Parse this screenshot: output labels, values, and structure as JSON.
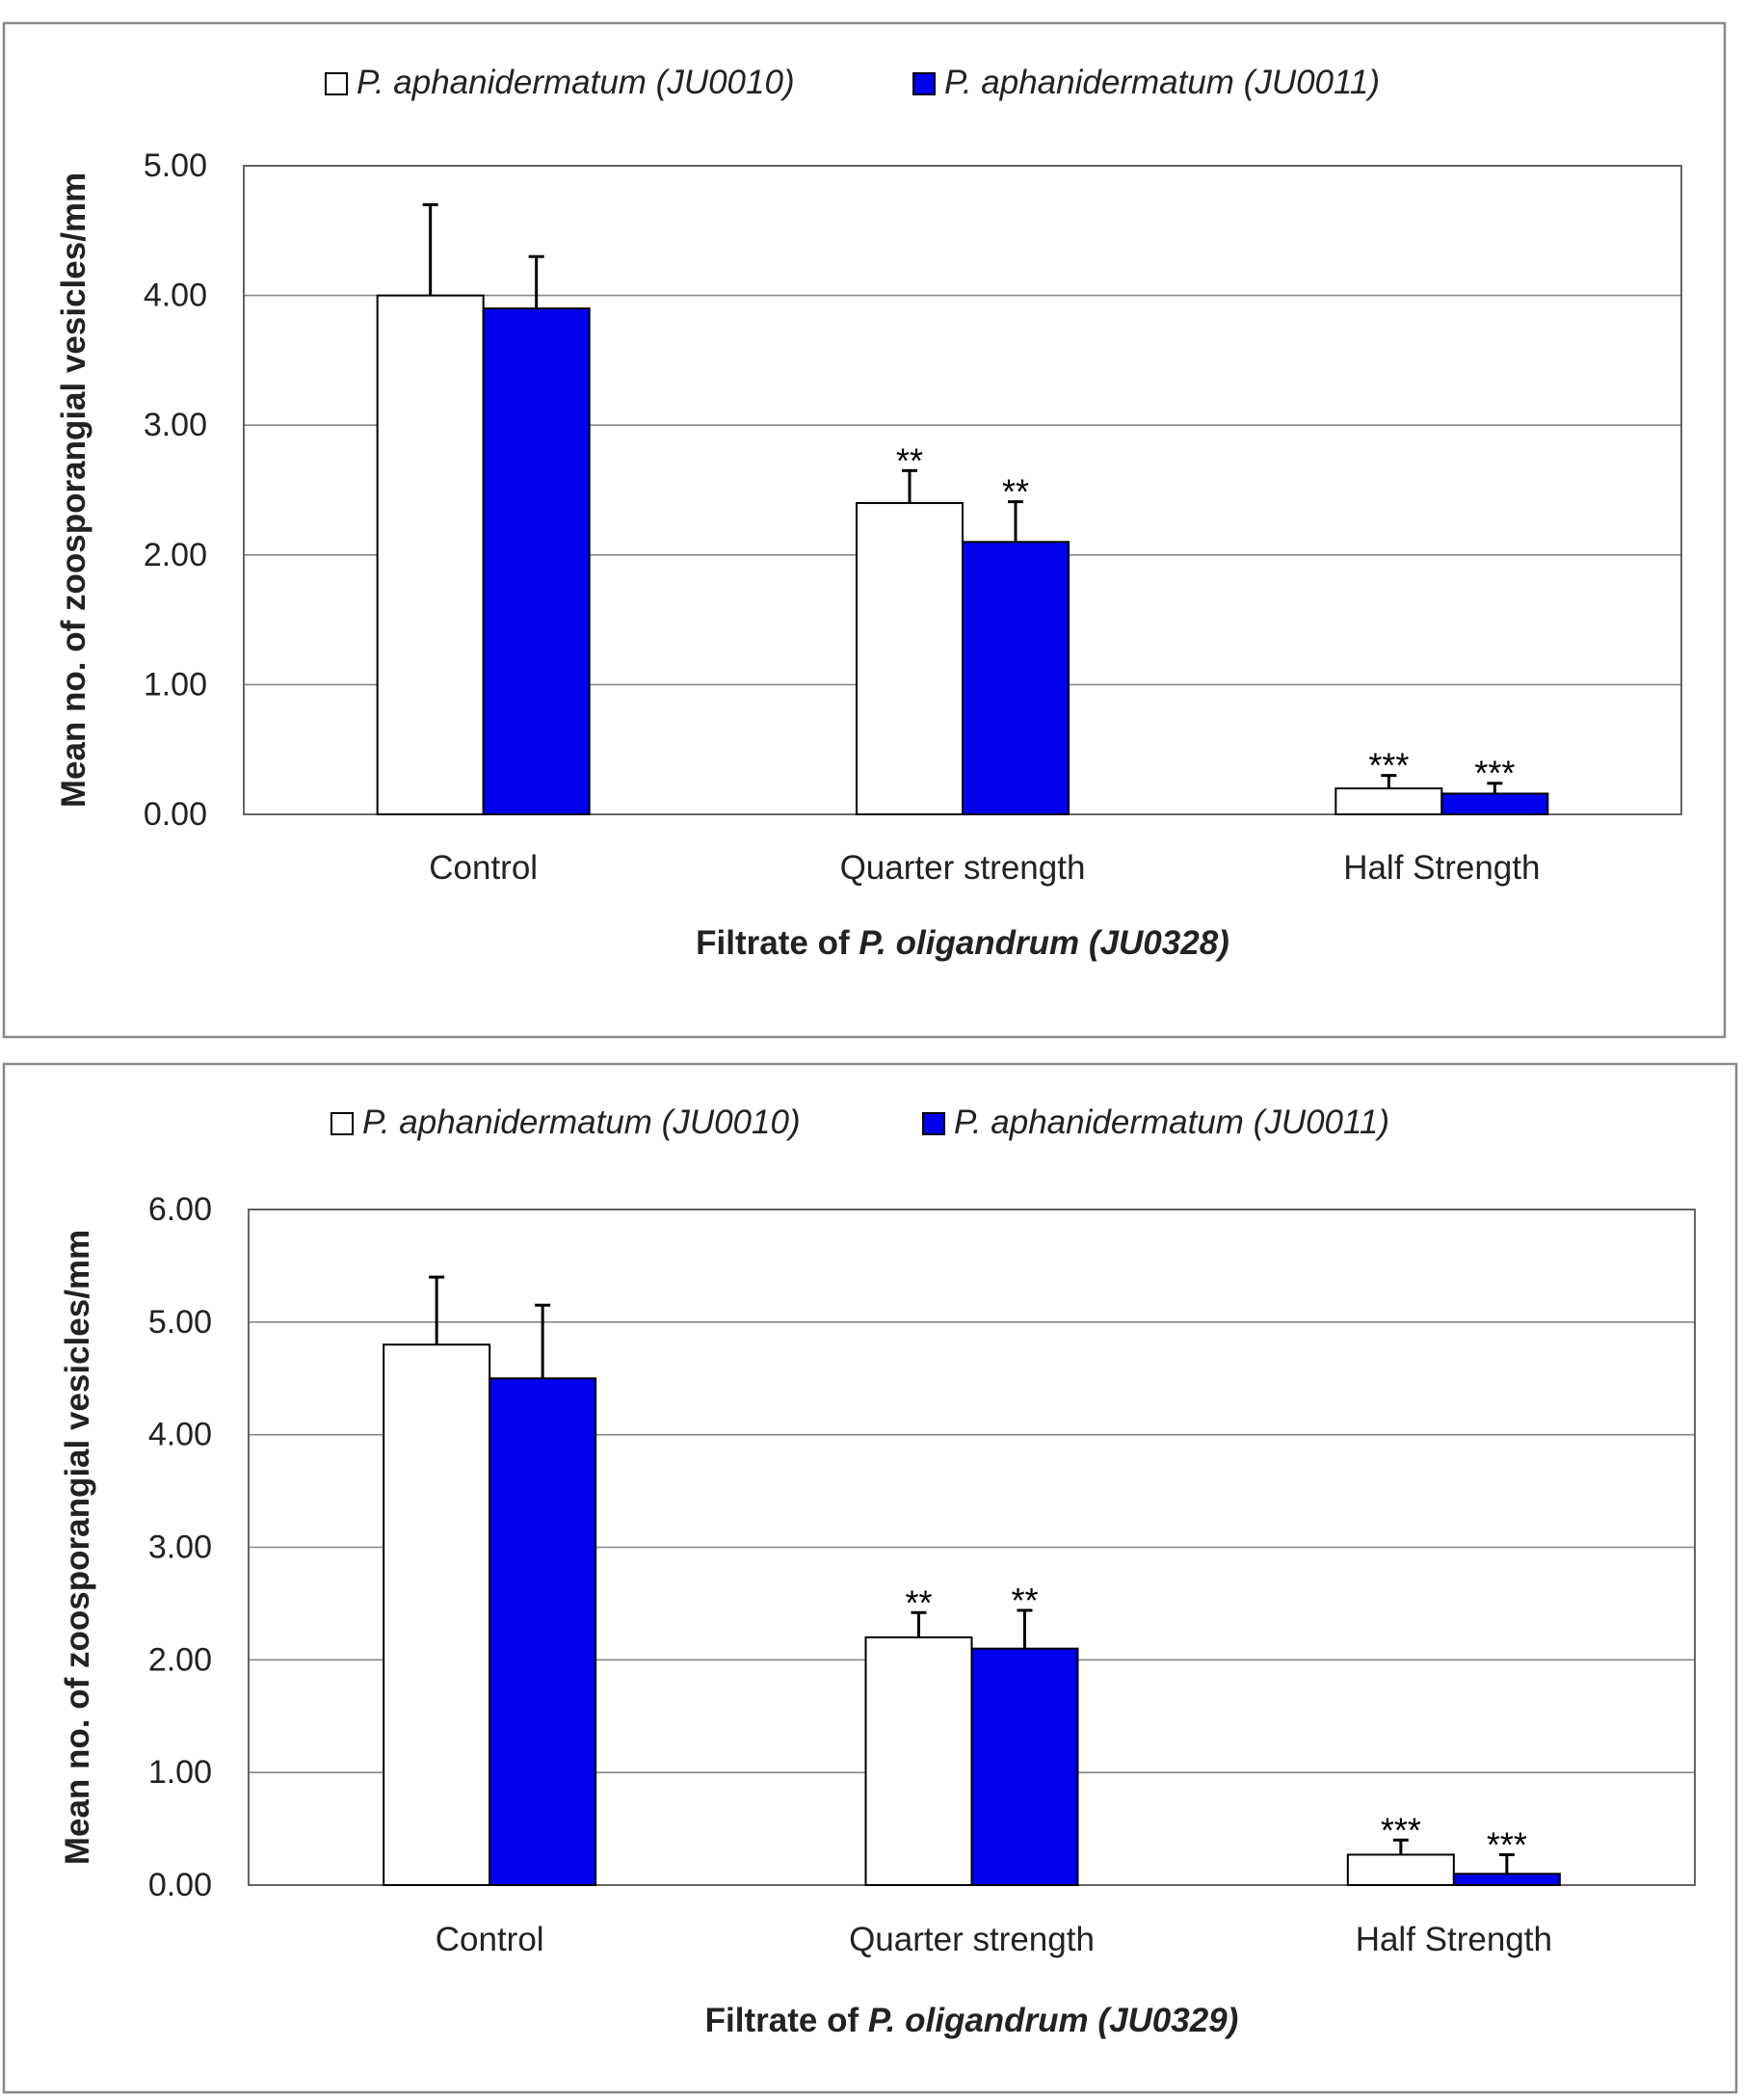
{
  "colors": {
    "series_1": "#ffffff",
    "series_2": "#0000ee",
    "bar_stroke": "#000000",
    "frame": "#888888",
    "grid": "#888888",
    "text": "#222222"
  },
  "chart_data": [
    {
      "type": "bar",
      "grid": true,
      "legend_position": "top",
      "xlabel": {
        "prefix": "Filtrate of ",
        "species": "P. oligandrum",
        "strain": " (JU0328)"
      },
      "ylabel": "Mean no. of zoosporangial vesicles/mm",
      "ylim": [
        0,
        5
      ],
      "yticks": [
        "0.00",
        "1.00",
        "2.00",
        "3.00",
        "4.00",
        "5.00"
      ],
      "categories": [
        "Control",
        "Quarter strength",
        "Half Strength"
      ],
      "series": [
        {
          "name": "P. aphanidermatum (JU0010)",
          "color": "#ffffff",
          "values": [
            4.0,
            2.4,
            0.2
          ],
          "errors": [
            0.7,
            0.25,
            0.1
          ],
          "annotations": [
            "",
            "**",
            "***"
          ]
        },
        {
          "name": "P. aphanidermatum (JU0011)",
          "color": "#0000ee",
          "values": [
            3.9,
            2.1,
            0.16
          ],
          "errors": [
            0.4,
            0.31,
            0.08
          ],
          "annotations": [
            "",
            "**",
            "***"
          ]
        }
      ]
    },
    {
      "type": "bar",
      "grid": true,
      "legend_position": "top",
      "xlabel": {
        "prefix": "Filtrate of ",
        "species": "P. oligandrum",
        "strain": " (JU0329)"
      },
      "ylabel": "Mean no. of zoosporangial vesicles/mm",
      "ylim": [
        0,
        6
      ],
      "yticks": [
        "0.00",
        "1.00",
        "2.00",
        "3.00",
        "4.00",
        "5.00",
        "6.00"
      ],
      "categories": [
        "Control",
        "Quarter strength",
        "Half Strength"
      ],
      "series": [
        {
          "name": "P. aphanidermatum (JU0010)",
          "color": "#ffffff",
          "values": [
            4.8,
            2.2,
            0.27
          ],
          "errors": [
            0.6,
            0.22,
            0.13
          ],
          "annotations": [
            "",
            "**",
            "***"
          ]
        },
        {
          "name": "P. aphanidermatum (JU0011)",
          "color": "#0000ee",
          "values": [
            4.5,
            2.1,
            0.1
          ],
          "errors": [
            0.65,
            0.34,
            0.17
          ],
          "annotations": [
            "",
            "**",
            "***"
          ]
        }
      ]
    }
  ]
}
